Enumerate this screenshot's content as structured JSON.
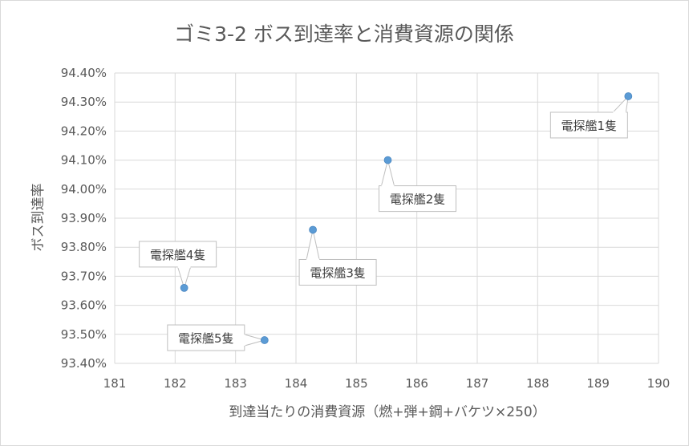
{
  "chart_data": {
    "type": "scatter",
    "title": "ゴミ3-2 ボス到達率と消費資源の関係",
    "xlabel": "到達当たりの消費資源（燃+弾+鋼+バケツ×250）",
    "ylabel": "ボス到達率",
    "xlim": [
      181,
      190
    ],
    "ylim": [
      93.4,
      94.4
    ],
    "x_ticks": [
      "181",
      "182",
      "183",
      "184",
      "185",
      "186",
      "187",
      "188",
      "189",
      "190"
    ],
    "y_ticks": [
      "93.40%",
      "93.50%",
      "93.60%",
      "93.70%",
      "93.80%",
      "93.90%",
      "94.00%",
      "94.10%",
      "94.20%",
      "94.30%",
      "94.40%"
    ],
    "grid": true,
    "legend": "none",
    "marker_color": "#5b9bd5",
    "points": [
      {
        "x": 189.5,
        "y": 94.32,
        "label": "電探艦1隻"
      },
      {
        "x": 185.52,
        "y": 94.1,
        "label": "電探艦2隻"
      },
      {
        "x": 184.28,
        "y": 93.86,
        "label": "電探艦3隻"
      },
      {
        "x": 182.15,
        "y": 93.66,
        "label": "電探艦4隻"
      },
      {
        "x": 183.48,
        "y": 93.48,
        "label": "電探艦5隻"
      }
    ]
  }
}
